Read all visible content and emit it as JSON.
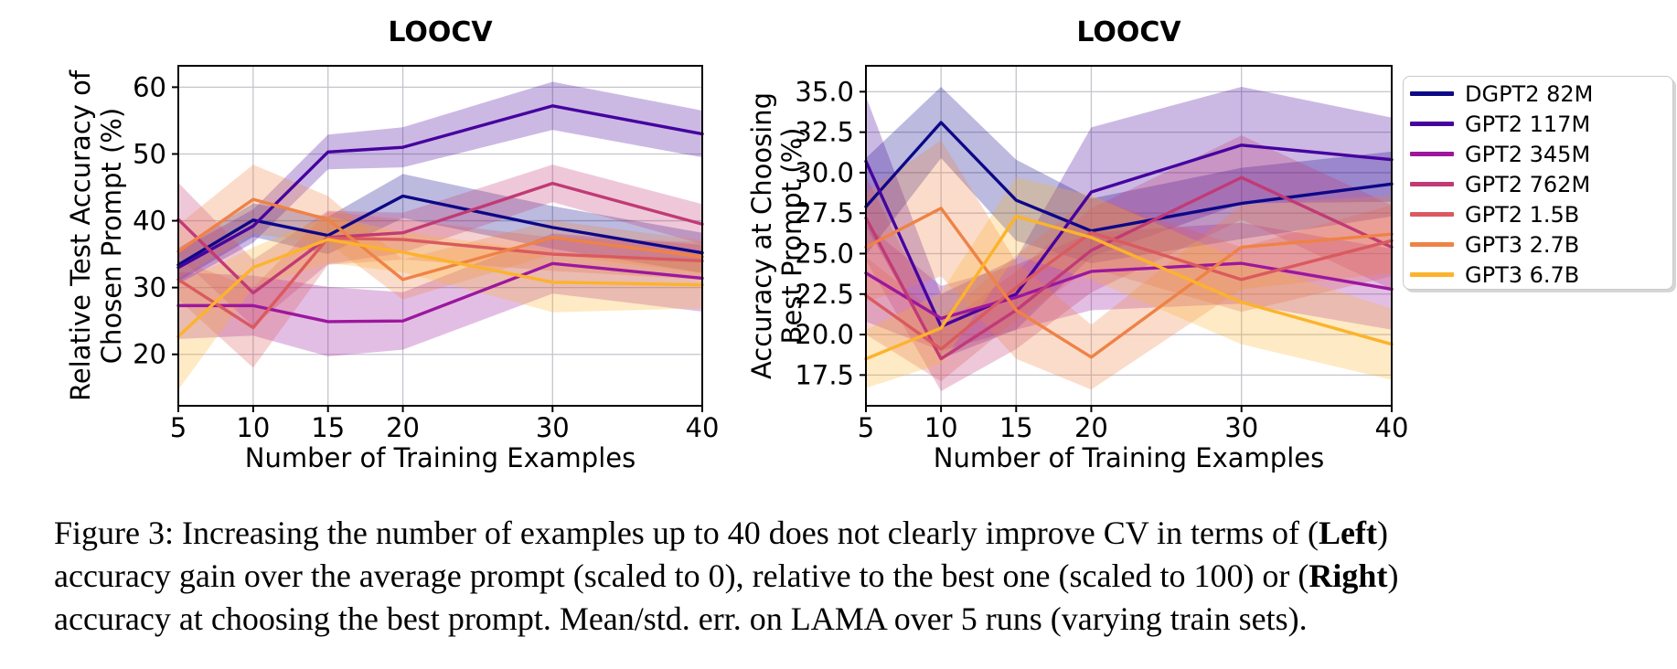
{
  "figure": {
    "caption_lines": [
      [
        {
          "text": "Figure 3: Increasing the number of examples up to 40 does not clearly improve CV in terms of (",
          "bold": false
        },
        {
          "text": "Left",
          "bold": true
        },
        {
          "text": ")",
          "bold": false
        }
      ],
      [
        {
          "text": "accuracy gain over the average prompt (scaled to 0), relative to the best one (scaled to 100) or (",
          "bold": false
        },
        {
          "text": "Right",
          "bold": true
        },
        {
          "text": ")",
          "bold": false
        }
      ],
      [
        {
          "text": "accuracy at choosing the best prompt. Mean/std. err. on LAMA over 5 runs (varying train sets).",
          "bold": false
        }
      ]
    ],
    "background": "#ffffff",
    "grid_color": "#c4c4cc"
  },
  "chart_data": [
    {
      "type": "line",
      "title": "LOOCV",
      "xlabel": "Number of Training Examples",
      "ylabel_lines": [
        "Relative Test Accuracy of",
        "Chosen Prompt (%)"
      ],
      "x": [
        5,
        10,
        15,
        20,
        30,
        40
      ],
      "xticks": [
        5,
        10,
        15,
        20,
        30,
        40
      ],
      "xtick_labels": [
        "5",
        "10",
        "15",
        "20",
        "30",
        "40"
      ],
      "ytick_vals": [
        20,
        30,
        40,
        50,
        60
      ],
      "ytick_labels": [
        "20",
        "30",
        "40",
        "50",
        "60"
      ],
      "xlim": [
        5,
        40
      ],
      "ylim": [
        12.3,
        63.2
      ],
      "grid": true,
      "legend_position": "outside-right",
      "series": [
        {
          "name": "DGPT2 82M",
          "color": "#0d0887",
          "values": [
            33.4,
            40.1,
            37.8,
            43.7,
            39.0,
            35.2
          ],
          "err": [
            2.5,
            2.5,
            2.8,
            3.3,
            3.2,
            3.0
          ]
        },
        {
          "name": "GPT2 117M",
          "color": "#46039f",
          "values": [
            33.0,
            39.2,
            50.3,
            51.0,
            57.2,
            53.0
          ],
          "err": [
            2.5,
            2.5,
            2.6,
            3.0,
            3.6,
            3.5
          ]
        },
        {
          "name": "GPT2 345M",
          "color": "#9c179e",
          "values": [
            27.3,
            27.3,
            24.9,
            25.0,
            33.6,
            31.4
          ],
          "err": [
            5.0,
            4.5,
            5.2,
            4.3,
            4.5,
            5.0
          ]
        },
        {
          "name": "GPT2 762M",
          "color": "#c13a76",
          "values": [
            40.2,
            29.2,
            37.5,
            38.2,
            45.6,
            39.5
          ],
          "err": [
            5.5,
            5.0,
            4.0,
            3.0,
            2.8,
            3.0
          ]
        },
        {
          "name": "GPT2 1.5B",
          "color": "#da5a5f",
          "values": [
            31.2,
            24.0,
            37.4,
            37.2,
            35.0,
            34.0
          ],
          "err": [
            3.0,
            6.0,
            4.0,
            3.0,
            2.5,
            2.8
          ]
        },
        {
          "name": "GPT3 2.7B",
          "color": "#ef8245",
          "values": [
            35.4,
            43.2,
            40.2,
            31.2,
            37.5,
            34.6
          ],
          "err": [
            4.0,
            5.2,
            3.5,
            3.0,
            2.5,
            2.5
          ]
        },
        {
          "name": "GPT3 6.7B",
          "color": "#fcb32b",
          "values": [
            22.7,
            33.0,
            37.2,
            35.3,
            30.8,
            30.4
          ],
          "err": [
            8.0,
            3.0,
            3.5,
            3.0,
            4.5,
            3.5
          ]
        }
      ]
    },
    {
      "type": "line",
      "title": "LOOCV",
      "xlabel": "Number of Training Examples",
      "ylabel_lines": [
        "Accuracy at Choosing",
        "Best Prompt (%)"
      ],
      "x": [
        5,
        10,
        15,
        20,
        30,
        40
      ],
      "xticks": [
        5,
        10,
        15,
        20,
        30,
        40
      ],
      "xtick_labels": [
        "5",
        "10",
        "15",
        "20",
        "30",
        "40"
      ],
      "ytick_vals": [
        17.5,
        20.0,
        22.5,
        25.0,
        27.5,
        30.0,
        32.5,
        35.0
      ],
      "ytick_labels": [
        "17.5",
        "20.0",
        "22.5",
        "25.0",
        "27.5",
        "30.0",
        "32.5",
        "35.0"
      ],
      "xlim": [
        5,
        40
      ],
      "ylim": [
        15.6,
        36.6
      ],
      "grid": true,
      "legend_position": "outside-right",
      "series": [
        {
          "name": "DGPT2 82M",
          "color": "#0d0887",
          "values": [
            27.9,
            33.1,
            28.3,
            26.4,
            28.1,
            29.3
          ],
          "err": [
            3.0,
            2.2,
            2.5,
            2.0,
            2.2,
            2.0
          ]
        },
        {
          "name": "GPT2 117M",
          "color": "#46039f",
          "values": [
            30.7,
            20.5,
            22.5,
            28.8,
            31.7,
            30.8
          ],
          "err": [
            4.0,
            2.0,
            2.2,
            4.0,
            3.6,
            2.6
          ]
        },
        {
          "name": "GPT2 345M",
          "color": "#9c179e",
          "values": [
            23.8,
            21.0,
            22.3,
            23.9,
            24.4,
            22.8
          ],
          "err": [
            3.0,
            2.0,
            2.0,
            2.4,
            2.5,
            2.5
          ]
        },
        {
          "name": "GPT2 762M",
          "color": "#c13a76",
          "values": [
            27.2,
            18.5,
            21.5,
            25.2,
            29.7,
            25.4
          ],
          "err": [
            2.6,
            2.0,
            2.4,
            2.6,
            2.6,
            2.6
          ]
        },
        {
          "name": "GPT2 1.5B",
          "color": "#da5a5f",
          "values": [
            22.4,
            19.1,
            22.9,
            26.3,
            23.4,
            25.8
          ],
          "err": [
            2.4,
            2.0,
            2.0,
            2.2,
            2.0,
            2.2
          ]
        },
        {
          "name": "GPT3 2.7B",
          "color": "#ef8245",
          "values": [
            25.4,
            27.8,
            21.5,
            18.6,
            25.4,
            26.2
          ],
          "err": [
            3.4,
            4.2,
            3.0,
            2.0,
            2.6,
            2.4
          ]
        },
        {
          "name": "GPT3 6.7B",
          "color": "#fcb32b",
          "values": [
            18.5,
            20.4,
            27.3,
            26.0,
            22.0,
            19.4
          ],
          "err": [
            1.8,
            2.2,
            2.4,
            2.6,
            2.6,
            2.2
          ]
        }
      ]
    }
  ]
}
